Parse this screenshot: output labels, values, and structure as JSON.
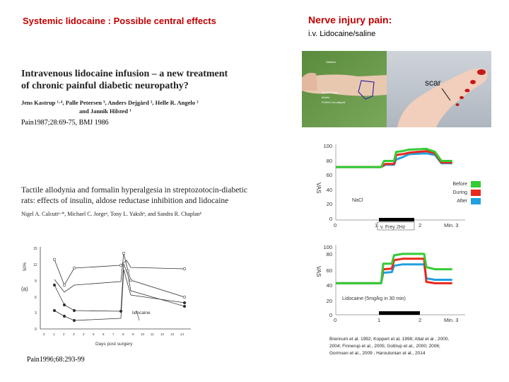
{
  "slide": {
    "left_title": "Systemic lidocaine : Possible central effects",
    "right_title": "Nerve injury pain:",
    "right_subtitle": "i.v. Lidocaine/saline"
  },
  "paper1": {
    "title_line1": "Intravenous lidocaine infusion – a new treatment",
    "title_line2": "of chronic painful diabetic neuropathy?",
    "authors_line1": "Jens Kastrup ¹·⁴, Palle Petersen ³, Anders Dejgård ², Helle R. Angelo ²",
    "authors_line2": "and Jannik Hilsted ¹",
    "citation": "Pain1987;28:69-75, BMJ 1986"
  },
  "paper2": {
    "title_line1": "Tactile allodynia and formalin hyperalgesia in streptozotocin-diabetic",
    "title_line2": "rats: effects of insulin, aldose reductase inhibition and lidocaine",
    "authors": "Nigel A. Calcuttᵃ·*, Michael C. Jorgeᵃ, Tony L. Yakshᵇ, and Sandra R. Chaplanᵇ",
    "citation": "Pain1996;68:293-99"
  },
  "photo": {
    "arm_labels": [
      "Dalfatext",
      "Sp.ndertemper",
      "Alodfra",
      "PURAS Linn-ategorie"
    ],
    "scar_label": "scar"
  },
  "rat_chart": {
    "panel_label": "(a)",
    "ylabel": "50%",
    "xlabel": "Days post surgery",
    "annotation": "lidocaine",
    "y_ticks": [
      "15",
      "12",
      "9",
      "6",
      "3",
      "0"
    ],
    "x_ticks": [
      "0",
      "1",
      "2",
      "3",
      "4",
      "5",
      "6",
      "7",
      "8",
      "9",
      "10",
      "11",
      "12",
      "13",
      "14"
    ]
  },
  "chart_data": [
    {
      "type": "line",
      "ylabel": "VAS",
      "y_ticks": [
        "100",
        "80",
        "60",
        "40",
        "20",
        "0"
      ],
      "x_ticks": [
        "0",
        "1",
        "2",
        "Min. 3"
      ],
      "ylim": [
        0,
        100
      ],
      "xlim": [
        0,
        3
      ],
      "infusion_bar_label": "v. Frey 2Hz",
      "condition_label": "NaCl",
      "legend": [
        {
          "label": "Before",
          "color": "#33cc33"
        },
        {
          "label": "During",
          "color": "#e8291c"
        },
        {
          "label": "After",
          "color": "#22a0e0"
        }
      ],
      "series": [
        {
          "name": "Before",
          "color": "#33cc33",
          "points": [
            [
              0,
              70
            ],
            [
              1.05,
              70
            ],
            [
              1.12,
              78
            ],
            [
              1.35,
              78
            ],
            [
              1.4,
              90
            ],
            [
              1.55,
              91
            ],
            [
              1.7,
              93
            ],
            [
              2.1,
              94
            ],
            [
              2.3,
              90
            ],
            [
              2.45,
              78
            ],
            [
              2.7,
              78
            ]
          ]
        },
        {
          "name": "During",
          "color": "#e8291c",
          "points": [
            [
              0,
              70
            ],
            [
              1.05,
              70
            ],
            [
              1.15,
              74
            ],
            [
              1.35,
              74
            ],
            [
              1.4,
              86
            ],
            [
              1.55,
              87
            ],
            [
              1.7,
              89
            ],
            [
              2.1,
              91
            ],
            [
              2.3,
              88
            ],
            [
              2.45,
              76
            ],
            [
              2.7,
              76
            ]
          ]
        },
        {
          "name": "After",
          "color": "#22a0e0",
          "points": [
            [
              0,
              70
            ],
            [
              1.05,
              70
            ],
            [
              1.15,
              73
            ],
            [
              1.35,
              73
            ],
            [
              1.4,
              80
            ],
            [
              1.55,
              83
            ],
            [
              1.7,
              87
            ],
            [
              2.1,
              88
            ],
            [
              2.3,
              86
            ],
            [
              2.45,
              75
            ],
            [
              2.7,
              75
            ]
          ]
        }
      ]
    },
    {
      "type": "line",
      "ylabel": "VAS",
      "y_ticks": [
        "100",
        "80",
        "60",
        "40",
        "20",
        "0"
      ],
      "x_ticks": [
        "0",
        "1",
        "2",
        "Min. 3"
      ],
      "ylim": [
        0,
        100
      ],
      "xlim": [
        0,
        3
      ],
      "condition_label": "Lidocaine (5mg/kg in 30 min)",
      "series": [
        {
          "name": "Before",
          "color": "#33cc33",
          "points": [
            [
              0,
              45
            ],
            [
              1.05,
              45
            ],
            [
              1.1,
              73
            ],
            [
              1.3,
              73
            ],
            [
              1.35,
              85
            ],
            [
              1.55,
              87
            ],
            [
              1.7,
              87
            ],
            [
              2.05,
              87
            ],
            [
              2.1,
              68
            ],
            [
              2.3,
              65
            ],
            [
              2.7,
              65
            ]
          ]
        },
        {
          "name": "During",
          "color": "#e8291c",
          "points": [
            [
              0,
              45
            ],
            [
              1.05,
              45
            ],
            [
              1.1,
              65
            ],
            [
              1.3,
              66
            ],
            [
              1.35,
              78
            ],
            [
              1.55,
              80
            ],
            [
              1.7,
              80
            ],
            [
              2.05,
              80
            ],
            [
              2.1,
              47
            ],
            [
              2.3,
              45
            ],
            [
              2.7,
              45
            ]
          ]
        },
        {
          "name": "After",
          "color": "#22a0e0",
          "points": [
            [
              0,
              45
            ],
            [
              1.05,
              45
            ],
            [
              1.1,
              60
            ],
            [
              1.3,
              61
            ],
            [
              1.35,
              70
            ],
            [
              1.55,
              72
            ],
            [
              1.7,
              72
            ],
            [
              2.05,
              72
            ],
            [
              2.1,
              52
            ],
            [
              2.3,
              50
            ],
            [
              2.7,
              50
            ]
          ]
        }
      ]
    }
  ],
  "references": {
    "line1": "Brennum et al. 1992; Koppert et al, 1998; Attal et al , 2000,",
    "line2": "2004; Finnerup et al., 2005; Gottrup et al., 2000; 2006;",
    "line3": "Gormsen et al., 2009 ; Haroutunian et al., 2014"
  }
}
